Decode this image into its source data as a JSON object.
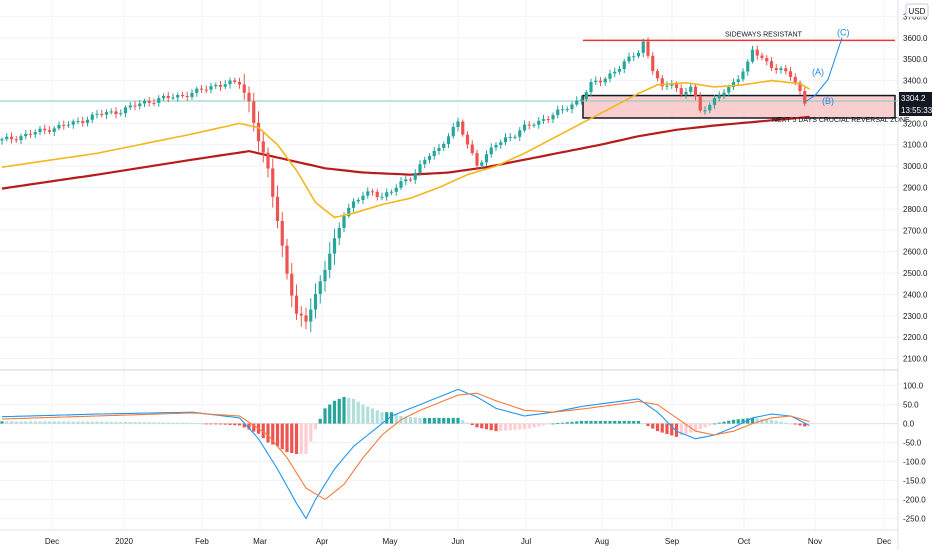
{
  "header": {
    "currency": "USD"
  },
  "price_badge": {
    "price": "3304.2",
    "countdown": "13:55:33"
  },
  "annotations": {
    "resistance": "SIDEWAYS RESISTANT",
    "zone": "NEXT 5 DAYS CRUCIAL REVERSAL ZONE",
    "wave_a": "(A)",
    "wave_b": "(B)",
    "wave_c": "(C)"
  },
  "colors": {
    "up": "#26a69a",
    "down": "#ef5350",
    "ma_short": "#f5b51c",
    "ma_long": "#b71c1c",
    "macd": "#2196f3",
    "signal": "#f57c3a",
    "resistance_line": "#e53935",
    "zone_fill": "#f7c6c7",
    "wave": "#1e88e5"
  },
  "chart_data": {
    "type": "candlestick",
    "x_labels": [
      "Dec",
      "2020",
      "Feb",
      "Mar",
      "Apr",
      "May",
      "Jun",
      "Jul",
      "Aug",
      "Sep",
      "Oct",
      "Nov",
      "Dec"
    ],
    "price_axis": {
      "ticks": [
        "3700.0",
        "3600.0",
        "3500.0",
        "3400.0",
        "3200.0",
        "3100.0",
        "3000.0",
        "2900.0",
        "2800.0",
        "2700.0",
        "2600.0",
        "2500.0",
        "2400.0",
        "2300.0",
        "2200.0",
        "2100.0"
      ],
      "range": [
        2070,
        3730
      ]
    },
    "macd_axis": {
      "ticks": [
        "100.0",
        "50.0",
        "0.0",
        "-50.0",
        "-100.0",
        "-150.0",
        "-200.0",
        "-250.0"
      ],
      "range": [
        -275,
        120
      ]
    },
    "levels": {
      "resistance": 3588,
      "zone_top": 3330,
      "zone_bottom": 3225,
      "last": 3304.2
    },
    "wave_path": [
      [
        3305,
        3330
      ],
      [
        3340,
        3405
      ],
      [
        3320,
        3600
      ]
    ],
    "price_path": [
      [
        0,
        3120
      ],
      [
        5,
        3145
      ],
      [
        10,
        3175
      ],
      [
        15,
        3200
      ],
      [
        20,
        3240
      ],
      [
        25,
        3258
      ],
      [
        30,
        3300
      ],
      [
        35,
        3320
      ],
      [
        40,
        3340
      ],
      [
        45,
        3380
      ],
      [
        50,
        3390
      ],
      [
        52,
        3300
      ],
      [
        54,
        3120
      ],
      [
        56,
        2980
      ],
      [
        58,
        2750
      ],
      [
        60,
        2500
      ],
      [
        62,
        2300
      ],
      [
        64,
        2280
      ],
      [
        66,
        2400
      ],
      [
        68,
        2520
      ],
      [
        70,
        2650
      ],
      [
        72,
        2780
      ],
      [
        74,
        2830
      ],
      [
        76,
        2860
      ],
      [
        78,
        2880
      ],
      [
        80,
        2860
      ],
      [
        82,
        2880
      ],
      [
        84,
        2920
      ],
      [
        86,
        2950
      ],
      [
        88,
        3000
      ],
      [
        90,
        3050
      ],
      [
        92,
        3080
      ],
      [
        94,
        3150
      ],
      [
        96,
        3200
      ],
      [
        98,
        3100
      ],
      [
        100,
        3010
      ],
      [
        102,
        3050
      ],
      [
        104,
        3100
      ],
      [
        106,
        3130
      ],
      [
        108,
        3150
      ],
      [
        110,
        3180
      ],
      [
        112,
        3200
      ],
      [
        114,
        3220
      ],
      [
        116,
        3240
      ],
      [
        118,
        3260
      ],
      [
        120,
        3290
      ],
      [
        122,
        3320
      ],
      [
        124,
        3380
      ],
      [
        126,
        3400
      ],
      [
        128,
        3430
      ],
      [
        130,
        3460
      ],
      [
        132,
        3500
      ],
      [
        134,
        3540
      ],
      [
        135,
        3580
      ],
      [
        137,
        3450
      ],
      [
        139,
        3360
      ],
      [
        141,
        3400
      ],
      [
        143,
        3330
      ],
      [
        145,
        3370
      ],
      [
        147,
        3260
      ],
      [
        149,
        3290
      ],
      [
        151,
        3330
      ],
      [
        153,
        3360
      ],
      [
        155,
        3420
      ],
      [
        157,
        3480
      ],
      [
        158,
        3540
      ],
      [
        160,
        3500
      ],
      [
        162,
        3470
      ],
      [
        164,
        3450
      ],
      [
        166,
        3420
      ],
      [
        167,
        3390
      ],
      [
        169,
        3300
      ]
    ],
    "ma_short_path": [
      [
        0,
        2995
      ],
      [
        20,
        3060
      ],
      [
        40,
        3150
      ],
      [
        50,
        3200
      ],
      [
        54,
        3180
      ],
      [
        58,
        3100
      ],
      [
        62,
        2980
      ],
      [
        66,
        2830
      ],
      [
        70,
        2760
      ],
      [
        74,
        2780
      ],
      [
        80,
        2820
      ],
      [
        86,
        2850
      ],
      [
        92,
        2900
      ],
      [
        98,
        2960
      ],
      [
        104,
        3000
      ],
      [
        110,
        3060
      ],
      [
        116,
        3130
      ],
      [
        122,
        3200
      ],
      [
        128,
        3270
      ],
      [
        134,
        3340
      ],
      [
        138,
        3380
      ],
      [
        144,
        3390
      ],
      [
        150,
        3370
      ],
      [
        156,
        3380
      ],
      [
        162,
        3400
      ],
      [
        168,
        3385
      ],
      [
        170,
        3360
      ]
    ],
    "ma_long_path": [
      [
        0,
        2895
      ],
      [
        20,
        2960
      ],
      [
        40,
        3030
      ],
      [
        52,
        3070
      ],
      [
        60,
        3030
      ],
      [
        68,
        2990
      ],
      [
        76,
        2970
      ],
      [
        86,
        2960
      ],
      [
        94,
        2970
      ],
      [
        102,
        2995
      ],
      [
        110,
        3030
      ],
      [
        118,
        3065
      ],
      [
        126,
        3100
      ],
      [
        134,
        3140
      ],
      [
        142,
        3170
      ],
      [
        150,
        3190
      ],
      [
        160,
        3210
      ],
      [
        170,
        3230
      ]
    ],
    "macd_path": [
      [
        0,
        18
      ],
      [
        20,
        25
      ],
      [
        40,
        30
      ],
      [
        50,
        15
      ],
      [
        54,
        -40
      ],
      [
        58,
        -120
      ],
      [
        62,
        -210
      ],
      [
        64,
        -250
      ],
      [
        66,
        -200
      ],
      [
        70,
        -120
      ],
      [
        74,
        -60
      ],
      [
        78,
        -20
      ],
      [
        82,
        20
      ],
      [
        86,
        40
      ],
      [
        90,
        60
      ],
      [
        94,
        80
      ],
      [
        96,
        90
      ],
      [
        100,
        70
      ],
      [
        104,
        40
      ],
      [
        110,
        20
      ],
      [
        116,
        30
      ],
      [
        122,
        45
      ],
      [
        128,
        55
      ],
      [
        134,
        65
      ],
      [
        138,
        30
      ],
      [
        142,
        -20
      ],
      [
        146,
        -40
      ],
      [
        150,
        -30
      ],
      [
        154,
        -10
      ],
      [
        158,
        15
      ],
      [
        162,
        25
      ],
      [
        166,
        20
      ],
      [
        170,
        -5
      ]
    ],
    "signal_path": [
      [
        0,
        12
      ],
      [
        20,
        20
      ],
      [
        40,
        28
      ],
      [
        50,
        20
      ],
      [
        56,
        -30
      ],
      [
        60,
        -90
      ],
      [
        64,
        -170
      ],
      [
        68,
        -200
      ],
      [
        72,
        -160
      ],
      [
        76,
        -90
      ],
      [
        80,
        -30
      ],
      [
        84,
        10
      ],
      [
        88,
        35
      ],
      [
        92,
        55
      ],
      [
        96,
        75
      ],
      [
        100,
        80
      ],
      [
        104,
        60
      ],
      [
        110,
        35
      ],
      [
        116,
        30
      ],
      [
        122,
        38
      ],
      [
        128,
        48
      ],
      [
        134,
        58
      ],
      [
        138,
        50
      ],
      [
        142,
        15
      ],
      [
        146,
        -20
      ],
      [
        150,
        -30
      ],
      [
        154,
        -20
      ],
      [
        158,
        0
      ],
      [
        162,
        15
      ],
      [
        166,
        20
      ],
      [
        170,
        5
      ]
    ]
  }
}
